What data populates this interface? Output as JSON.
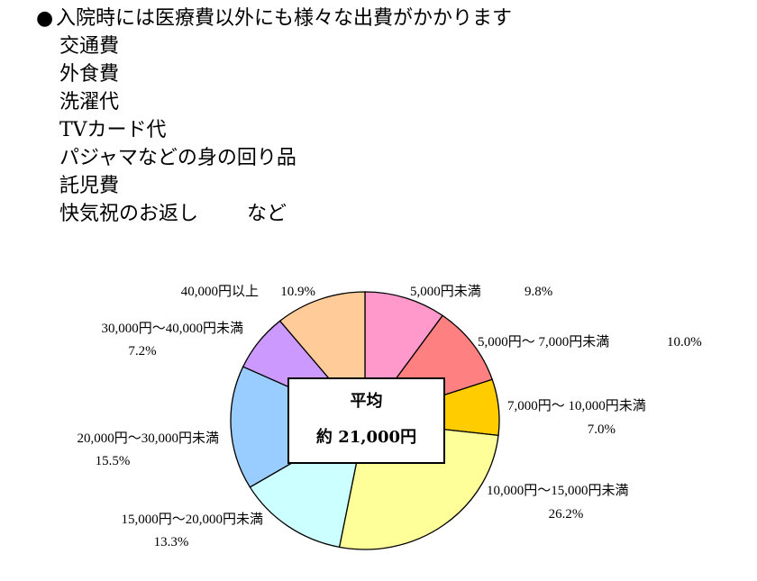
{
  "intro": {
    "bullet": "●",
    "headline": "入院時には医療費以外にも様々な出費がかかります",
    "items": [
      "交通費",
      "外食費",
      "洗濯代",
      "TVカード代",
      "パジャマなどの身の回り品",
      "託児費",
      "快気祝のお返し"
    ],
    "trailing": "など"
  },
  "average": {
    "title": "平均",
    "value": "約 21,000円"
  },
  "chart_data": {
    "type": "pie",
    "unit": "%",
    "slices": [
      {
        "label": "5,000円未満",
        "value": 9.8,
        "value_label": "9.8%",
        "color": "#FF99CC"
      },
      {
        "label": "5,000円～ 7,000円未満",
        "value": 10.0,
        "value_label": "10.0%",
        "color": "#FF8080"
      },
      {
        "label": "7,000円～ 10,000円未満",
        "value": 7.0,
        "value_label": "7.0%",
        "color": "#FFCC00"
      },
      {
        "label": "10,000円～15,000円未満",
        "value": 26.2,
        "value_label": "26.2%",
        "color": "#FFFF99"
      },
      {
        "label": "15,000円～20,000円未満",
        "value": 13.3,
        "value_label": "13.3%",
        "color": "#CCFFFF"
      },
      {
        "label": "20,000円～30,000円未満",
        "value": 15.5,
        "value_label": "15.5%",
        "color": "#99CCFF"
      },
      {
        "label": "30,000円～40,000円未満",
        "value": 7.2,
        "value_label": "7.2%",
        "color": "#CC99FF"
      },
      {
        "label": "40,000円以上",
        "value": 10.9,
        "value_label": "10.9%",
        "color": "#FFCC99"
      }
    ]
  }
}
